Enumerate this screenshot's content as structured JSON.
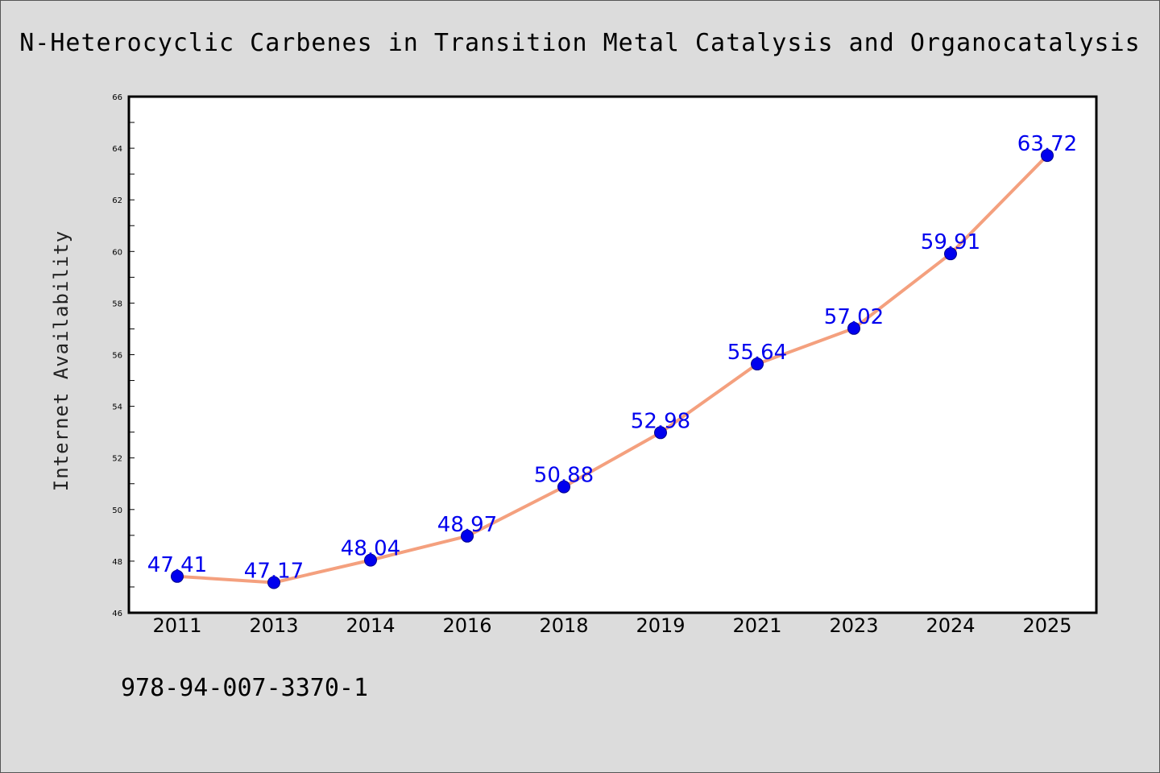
{
  "chart_data": {
    "type": "line",
    "title": "N-Heterocyclic Carbenes in Transition Metal Catalysis and Organocatalysis",
    "xlabel": "",
    "ylabel": "Internet Availability",
    "categories": [
      "2011",
      "2013",
      "2014",
      "2016",
      "2018",
      "2019",
      "2021",
      "2023",
      "2024",
      "2025"
    ],
    "series": [
      {
        "values": [
          47.41,
          47.17,
          48.04,
          48.97,
          50.88,
          52.98,
          55.64,
          57.02,
          59.91,
          63.72
        ],
        "labels": [
          "47.41",
          "47.17",
          "48.04",
          "48.97",
          "50.88",
          "52.98",
          "55.64",
          "57.02",
          "59.91",
          "63.72"
        ]
      }
    ],
    "ylim": [
      46,
      66
    ],
    "yticks": [
      "46",
      "48",
      "50",
      "52",
      "54",
      "56",
      "58",
      "60",
      "62",
      "64",
      "66"
    ],
    "grid": false,
    "legend": "none",
    "colors": {
      "line": "#f4a07e",
      "marker": "#0000ee",
      "data_label": "#0000ee",
      "background": "#dcdcdc",
      "plot_background": "#ffffff"
    }
  },
  "footer": {
    "isbn": "978-94-007-3370-1"
  }
}
